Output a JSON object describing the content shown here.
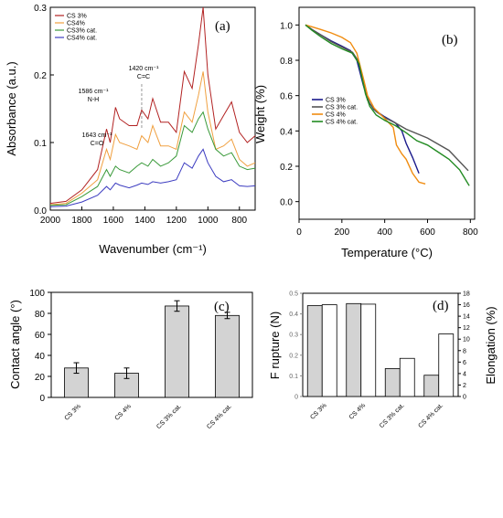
{
  "chart_data": [
    {
      "panel": "(a)",
      "type": "line",
      "xlabel": "Wavenumber (cm⁻¹)",
      "ylabel": "Absorbance (a.u.)",
      "xlim": [
        2000,
        700
      ],
      "ylim": [
        0,
        0.3
      ],
      "x_ticks": [
        2000,
        1800,
        1600,
        1400,
        1200,
        1000,
        800
      ],
      "x_tick_labels": [
        "2000",
        "1800",
        "1600",
        "1400",
        "1200",
        "1000",
        "800"
      ],
      "y_ticks": [
        0,
        0.1,
        0.2,
        0.3
      ],
      "y_tick_labels": [
        "0.0",
        "0.1",
        "0.2",
        "0.3"
      ],
      "legend_position": "top-left",
      "series": [
        {
          "name": "CS 3%",
          "color": "#b22222",
          "points": [
            [
              2000,
              0.01
            ],
            [
              1900,
              0.013
            ],
            [
              1800,
              0.03
            ],
            [
              1700,
              0.06
            ],
            [
              1643,
              0.12
            ],
            [
              1620,
              0.1
            ],
            [
              1586,
              0.152
            ],
            [
              1560,
              0.135
            ],
            [
              1500,
              0.125
            ],
            [
              1450,
              0.125
            ],
            [
              1420,
              0.148
            ],
            [
              1380,
              0.135
            ],
            [
              1350,
              0.165
            ],
            [
              1300,
              0.13
            ],
            [
              1250,
              0.13
            ],
            [
              1200,
              0.115
            ],
            [
              1150,
              0.205
            ],
            [
              1100,
              0.18
            ],
            [
              1060,
              0.245
            ],
            [
              1030,
              0.3
            ],
            [
              1000,
              0.2
            ],
            [
              950,
              0.12
            ],
            [
              900,
              0.14
            ],
            [
              850,
              0.16
            ],
            [
              800,
              0.115
            ],
            [
              750,
              0.1
            ],
            [
              700,
              0.11
            ]
          ]
        },
        {
          "name": "CS4%",
          "color": "#f0a040",
          "points": [
            [
              2000,
              0.008
            ],
            [
              1900,
              0.01
            ],
            [
              1800,
              0.025
            ],
            [
              1700,
              0.045
            ],
            [
              1643,
              0.09
            ],
            [
              1620,
              0.075
            ],
            [
              1586,
              0.112
            ],
            [
              1560,
              0.1
            ],
            [
              1500,
              0.095
            ],
            [
              1450,
              0.09
            ],
            [
              1420,
              0.11
            ],
            [
              1380,
              0.1
            ],
            [
              1350,
              0.125
            ],
            [
              1300,
              0.095
            ],
            [
              1250,
              0.095
            ],
            [
              1200,
              0.09
            ],
            [
              1150,
              0.145
            ],
            [
              1100,
              0.13
            ],
            [
              1060,
              0.17
            ],
            [
              1030,
              0.205
            ],
            [
              1000,
              0.145
            ],
            [
              950,
              0.09
            ],
            [
              900,
              0.095
            ],
            [
              850,
              0.105
            ],
            [
              800,
              0.075
            ],
            [
              750,
              0.065
            ],
            [
              700,
              0.07
            ]
          ]
        },
        {
          "name": "CS3% cat.",
          "color": "#3a9a3a",
          "points": [
            [
              2000,
              0.007
            ],
            [
              1900,
              0.008
            ],
            [
              1800,
              0.02
            ],
            [
              1700,
              0.035
            ],
            [
              1643,
              0.06
            ],
            [
              1620,
              0.05
            ],
            [
              1586,
              0.065
            ],
            [
              1560,
              0.06
            ],
            [
              1500,
              0.055
            ],
            [
              1450,
              0.065
            ],
            [
              1420,
              0.07
            ],
            [
              1380,
              0.065
            ],
            [
              1350,
              0.075
            ],
            [
              1300,
              0.065
            ],
            [
              1250,
              0.07
            ],
            [
              1200,
              0.08
            ],
            [
              1150,
              0.125
            ],
            [
              1100,
              0.115
            ],
            [
              1060,
              0.135
            ],
            [
              1030,
              0.145
            ],
            [
              1000,
              0.12
            ],
            [
              950,
              0.09
            ],
            [
              900,
              0.08
            ],
            [
              850,
              0.085
            ],
            [
              800,
              0.065
            ],
            [
              750,
              0.06
            ],
            [
              700,
              0.062
            ]
          ]
        },
        {
          "name": "CS4% cat.",
          "color": "#3c3cc0",
          "points": [
            [
              2000,
              0.005
            ],
            [
              1900,
              0.006
            ],
            [
              1800,
              0.012
            ],
            [
              1700,
              0.022
            ],
            [
              1643,
              0.035
            ],
            [
              1620,
              0.03
            ],
            [
              1586,
              0.04
            ],
            [
              1560,
              0.037
            ],
            [
              1500,
              0.033
            ],
            [
              1450,
              0.037
            ],
            [
              1420,
              0.04
            ],
            [
              1380,
              0.038
            ],
            [
              1350,
              0.042
            ],
            [
              1300,
              0.04
            ],
            [
              1250,
              0.042
            ],
            [
              1200,
              0.045
            ],
            [
              1150,
              0.07
            ],
            [
              1100,
              0.062
            ],
            [
              1060,
              0.08
            ],
            [
              1030,
              0.09
            ],
            [
              1000,
              0.07
            ],
            [
              950,
              0.05
            ],
            [
              900,
              0.042
            ],
            [
              850,
              0.045
            ],
            [
              800,
              0.036
            ],
            [
              750,
              0.035
            ],
            [
              700,
              0.036
            ]
          ]
        }
      ],
      "annotations": [
        {
          "line1": "1643 cm⁻¹",
          "line2": "C=O",
          "x": 1643
        },
        {
          "line1": "1586 cm⁻¹",
          "line2": "N-H",
          "x": 1586
        },
        {
          "line1": "1420 cm⁻¹",
          "line2": "C=C",
          "x": 1420
        }
      ]
    },
    {
      "panel": "(b)",
      "type": "line",
      "xlabel": "Temperature (°C)",
      "ylabel": "Weight (%)",
      "xlim": [
        0,
        820
      ],
      "ylim": [
        -0.1,
        1.1
      ],
      "x_ticks": [
        0,
        200,
        400,
        600,
        800
      ],
      "x_tick_labels": [
        "0",
        "200",
        "400",
        "600",
        "800"
      ],
      "y_ticks": [
        0,
        0.2,
        0.4,
        0.6,
        0.8,
        1.0
      ],
      "y_tick_labels": [
        "0.0",
        "0.2",
        "0.4",
        "0.6",
        "0.8",
        "1.0"
      ],
      "legend_position": "center-left",
      "series": [
        {
          "name": "CS 3%",
          "color": "#1a1a8c",
          "points": [
            [
              30,
              1.0
            ],
            [
              60,
              0.975
            ],
            [
              100,
              0.945
            ],
            [
              150,
              0.91
            ],
            [
              200,
              0.88
            ],
            [
              240,
              0.855
            ],
            [
              270,
              0.8
            ],
            [
              300,
              0.66
            ],
            [
              320,
              0.575
            ],
            [
              350,
              0.52
            ],
            [
              400,
              0.48
            ],
            [
              450,
              0.445
            ],
            [
              480,
              0.4
            ],
            [
              500,
              0.33
            ],
            [
              530,
              0.25
            ],
            [
              560,
              0.16
            ]
          ]
        },
        {
          "name": "CS 3% cat.",
          "color": "#555555",
          "points": [
            [
              30,
              1.0
            ],
            [
              60,
              0.975
            ],
            [
              100,
              0.945
            ],
            [
              150,
              0.905
            ],
            [
              200,
              0.875
            ],
            [
              250,
              0.845
            ],
            [
              280,
              0.79
            ],
            [
              310,
              0.62
            ],
            [
              330,
              0.555
            ],
            [
              360,
              0.51
            ],
            [
              400,
              0.475
            ],
            [
              450,
              0.445
            ],
            [
              500,
              0.41
            ],
            [
              600,
              0.36
            ],
            [
              700,
              0.29
            ],
            [
              790,
              0.175
            ]
          ]
        },
        {
          "name": "CS 4%",
          "color": "#f08c10",
          "points": [
            [
              30,
              1.0
            ],
            [
              60,
              0.99
            ],
            [
              100,
              0.975
            ],
            [
              150,
              0.955
            ],
            [
              200,
              0.93
            ],
            [
              240,
              0.9
            ],
            [
              270,
              0.84
            ],
            [
              300,
              0.7
            ],
            [
              320,
              0.6
            ],
            [
              350,
              0.53
            ],
            [
              400,
              0.47
            ],
            [
              440,
              0.42
            ],
            [
              455,
              0.32
            ],
            [
              480,
              0.27
            ],
            [
              500,
              0.24
            ],
            [
              530,
              0.16
            ],
            [
              560,
              0.11
            ],
            [
              590,
              0.1
            ]
          ]
        },
        {
          "name": "CS 4% cat.",
          "color": "#228b22",
          "points": [
            [
              30,
              1.0
            ],
            [
              60,
              0.97
            ],
            [
              100,
              0.935
            ],
            [
              150,
              0.895
            ],
            [
              200,
              0.865
            ],
            [
              250,
              0.84
            ],
            [
              280,
              0.78
            ],
            [
              310,
              0.61
            ],
            [
              330,
              0.54
            ],
            [
              360,
              0.49
            ],
            [
              400,
              0.46
            ],
            [
              450,
              0.43
            ],
            [
              500,
              0.39
            ],
            [
              550,
              0.345
            ],
            [
              600,
              0.32
            ],
            [
              650,
              0.28
            ],
            [
              700,
              0.24
            ],
            [
              750,
              0.18
            ],
            [
              795,
              0.09
            ]
          ]
        }
      ]
    },
    {
      "panel": "(c)",
      "type": "bar",
      "ylabel": "Contact angle (°)",
      "categories": [
        "CS 3%",
        "CS 4%",
        "CS 3% cat.",
        "CS 4% cat."
      ],
      "values": [
        28,
        23,
        87,
        78
      ],
      "errors": [
        5,
        5,
        5,
        3
      ],
      "ylim": [
        0,
        100
      ],
      "y_ticks": [
        0,
        20,
        40,
        60,
        80,
        100
      ],
      "y_tick_labels": [
        "0",
        "20",
        "40",
        "60",
        "80",
        "100"
      ],
      "bar_color": "#d3d3d3"
    },
    {
      "panel": "(d)",
      "type": "bar",
      "ylabel_left": "F rupture (N)",
      "ylabel_right": "Elongation (%)",
      "categories": [
        "CS 3%",
        "CS 4%",
        "CS 3% cat.",
        "CS 4% cat."
      ],
      "series": [
        {
          "axis": "left",
          "color": "#d3d3d3",
          "values": [
            0.44,
            0.45,
            0.135,
            0.103
          ]
        },
        {
          "axis": "right",
          "color": "#ffffff",
          "values": [
            16.0,
            16.1,
            6.65,
            10.9
          ]
        }
      ],
      "ylim_left": [
        0,
        0.5
      ],
      "ylim_right": [
        0,
        18
      ],
      "y_ticks_left": [
        0,
        0.1,
        0.2,
        0.3,
        0.4,
        0.5
      ],
      "y_tick_labels_left": [
        "0",
        "0.1",
        "0.2",
        "0.3",
        "0.4",
        "0.5"
      ],
      "y_ticks_right": [
        0,
        2,
        4,
        6,
        8,
        10,
        12,
        14,
        16,
        18
      ],
      "y_tick_labels_right": [
        "0",
        "2",
        "4",
        "6",
        "8",
        "10",
        "12",
        "14",
        "16",
        "18"
      ]
    }
  ]
}
